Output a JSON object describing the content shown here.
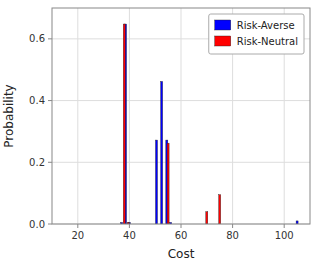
{
  "chart_data": {
    "type": "bar",
    "title": "",
    "xlabel": "Cost",
    "ylabel": "Probability",
    "xlim": [
      10,
      110
    ],
    "ylim": [
      0,
      0.7
    ],
    "xticks": [
      20,
      40,
      60,
      80,
      100
    ],
    "yticks": [
      {
        "value": 0.0,
        "label": "0.0"
      },
      0.2,
      0.4,
      0.6
    ],
    "grid": true,
    "legend": "upper right",
    "series": [
      {
        "name": "Risk-Averse",
        "color": "#0000ff",
        "x": [
          37.0,
          38.5,
          40.0,
          50.5,
          52.5,
          54.5,
          56.0,
          105.0
        ],
        "values": [
          0.005,
          0.648,
          0.005,
          0.272,
          0.462,
          0.272,
          0.005,
          0.01
        ]
      },
      {
        "name": "Risk-Neutral",
        "color": "#ff0000",
        "x": [
          38.0,
          39.5,
          55.0,
          70.0,
          75.0
        ],
        "values": [
          0.648,
          0.005,
          0.262,
          0.04,
          0.095
        ]
      }
    ]
  }
}
